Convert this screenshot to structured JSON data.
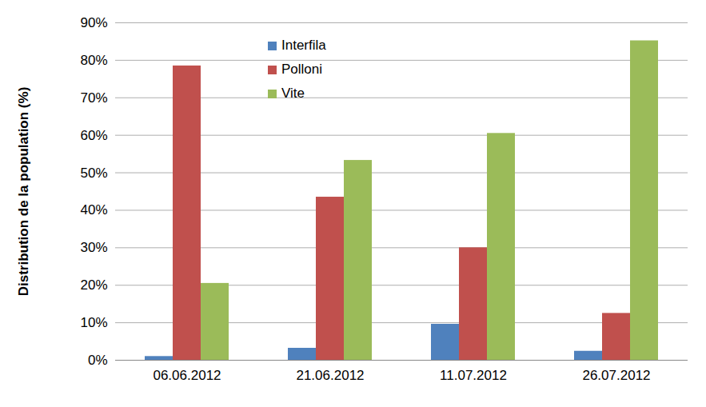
{
  "chart_data": {
    "type": "bar",
    "y_label": "Distribution de la population (%)",
    "categories": [
      "06.06.2012",
      "21.06.2012",
      "11.07.2012",
      "26.07.2012"
    ],
    "series": [
      {
        "name": "Interfila",
        "color": "#4f81bd",
        "values": [
          1.0,
          3.2,
          9.6,
          2.4
        ]
      },
      {
        "name": "Polloni",
        "color": "#c0504d",
        "values": [
          78.5,
          43.5,
          30.0,
          12.5
        ]
      },
      {
        "name": "Vite",
        "color": "#9bbb59",
        "values": [
          20.5,
          53.3,
          60.5,
          85.2
        ]
      }
    ],
    "ylim": [
      0,
      90
    ],
    "yticks": [
      {
        "value": 0,
        "label": "0%"
      },
      {
        "value": 10,
        "label": "10%"
      },
      {
        "value": 20,
        "label": "20%"
      },
      {
        "value": 30,
        "label": "30%"
      },
      {
        "value": 40,
        "label": "40%"
      },
      {
        "value": 50,
        "label": "50%"
      },
      {
        "value": 60,
        "label": "60%"
      },
      {
        "value": 70,
        "label": "70%"
      },
      {
        "value": 80,
        "label": "80%"
      },
      {
        "value": 90,
        "label": "90%"
      }
    ],
    "grid": true,
    "legend": "top"
  }
}
